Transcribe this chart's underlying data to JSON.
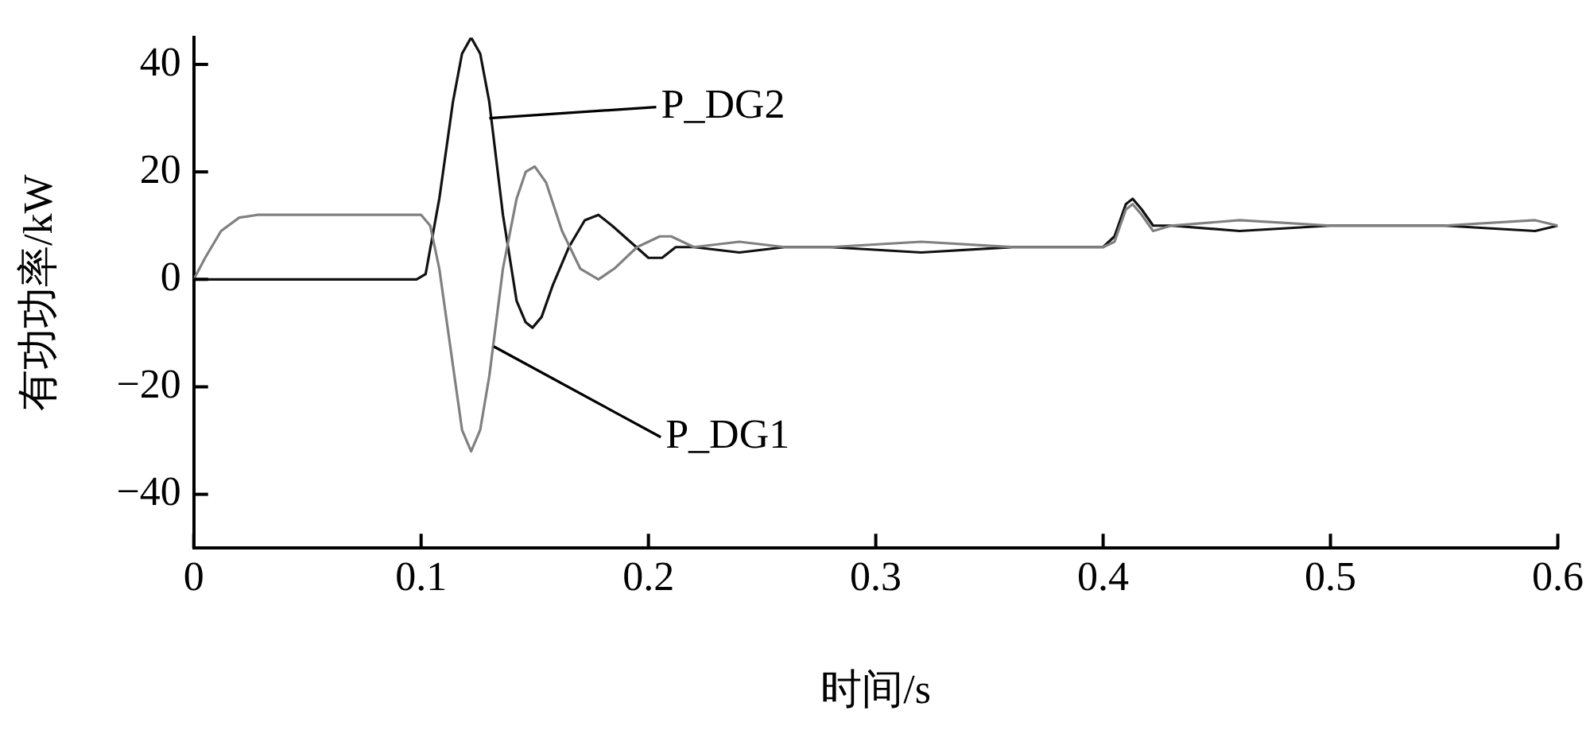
{
  "chart_data": {
    "type": "line",
    "xlabel": "时间/s",
    "ylabel": "有功功率/kW",
    "xlim": [
      0,
      0.6
    ],
    "xticks": [
      0,
      0.1,
      0.2,
      0.3,
      0.4,
      0.5,
      0.6
    ],
    "ylim": [
      -50,
      45
    ],
    "yticks": [
      -40,
      -20,
      0,
      20,
      40
    ],
    "marker": "none",
    "line_style": "solid",
    "legend": false,
    "grid": false,
    "annotations": [
      {
        "text": "P_DG2",
        "x": 0.13,
        "y": 30
      },
      {
        "text": "P_DG1",
        "x": 0.132,
        "y": -12.5
      }
    ],
    "series": [
      {
        "color": "#808080",
        "x": [
          0,
          0.005,
          0.012,
          0.02,
          0.028,
          0.1,
          0.104,
          0.108,
          0.114,
          0.118,
          0.122,
          0.126,
          0.13,
          0.136,
          0.142,
          0.146,
          0.15,
          0.155,
          0.162,
          0.17,
          0.178,
          0.185,
          0.195,
          0.205,
          0.21,
          0.215,
          0.22,
          0.24,
          0.26,
          0.28,
          0.32,
          0.36,
          0.4,
          0.405,
          0.41,
          0.413,
          0.417,
          0.422,
          0.43,
          0.46,
          0.5,
          0.55,
          0.59,
          0.6
        ],
        "values": [
          0,
          4,
          9,
          11.5,
          12,
          12,
          10,
          2,
          -16,
          -28,
          -32,
          -28,
          -18,
          2,
          15,
          20,
          21,
          18,
          9,
          2,
          0,
          2,
          6,
          8,
          8,
          7,
          6,
          7,
          6,
          6,
          7,
          6,
          6,
          7,
          13,
          14,
          12,
          9,
          10,
          11,
          10,
          10,
          11,
          10
        ]
      },
      {
        "color": "#111111",
        "x": [
          0,
          0.098,
          0.102,
          0.108,
          0.114,
          0.118,
          0.122,
          0.126,
          0.13,
          0.136,
          0.142,
          0.146,
          0.149,
          0.153,
          0.158,
          0.165,
          0.172,
          0.178,
          0.184,
          0.192,
          0.2,
          0.206,
          0.212,
          0.22,
          0.24,
          0.26,
          0.28,
          0.32,
          0.36,
          0.4,
          0.405,
          0.41,
          0.413,
          0.417,
          0.422,
          0.43,
          0.46,
          0.5,
          0.55,
          0.59,
          0.6
        ],
        "values": [
          0,
          0,
          1,
          15,
          33,
          42,
          45,
          42,
          33,
          12,
          -4,
          -8,
          -9,
          -7,
          -1,
          6,
          11,
          12,
          10,
          7,
          4,
          4,
          6,
          6,
          5,
          6,
          6,
          5,
          6,
          6,
          8,
          14,
          15,
          13,
          10,
          10,
          9,
          10,
          10,
          9,
          10
        ]
      }
    ]
  }
}
